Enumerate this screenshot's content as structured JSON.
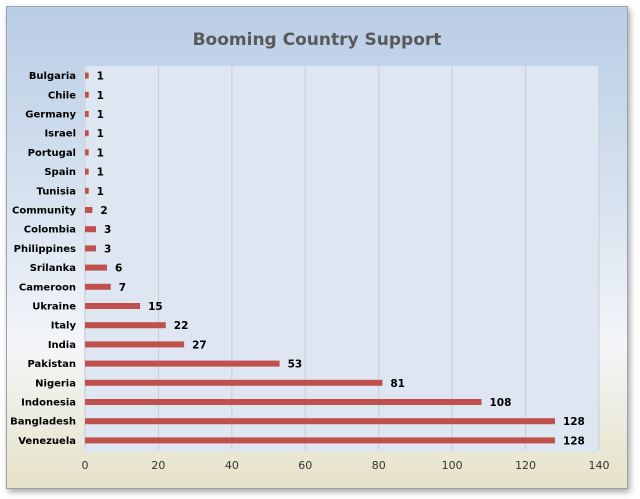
{
  "chart_data": {
    "type": "bar",
    "orientation": "horizontal",
    "title": "Booming Country Support",
    "categories": [
      "Bulgaria",
      "Chile",
      "Germany",
      "Israel",
      "Portugal",
      "Spain",
      "Tunisia",
      "Community",
      "Colombia",
      "Philippines",
      "Srilanka",
      "Cameroon",
      "Ukraine",
      "Italy",
      "India",
      "Pakistan",
      "Nigeria",
      "Indonesia",
      "Bangladesh",
      "Venezuela"
    ],
    "values": [
      1,
      1,
      1,
      1,
      1,
      1,
      1,
      2,
      3,
      3,
      6,
      7,
      15,
      22,
      27,
      53,
      81,
      108,
      128,
      128
    ],
    "xlim": [
      0,
      140
    ],
    "xticks": [
      0,
      20,
      40,
      60,
      80,
      100,
      120,
      140
    ],
    "bar_color": "#c0504d",
    "grid": true,
    "data_labels": true
  }
}
